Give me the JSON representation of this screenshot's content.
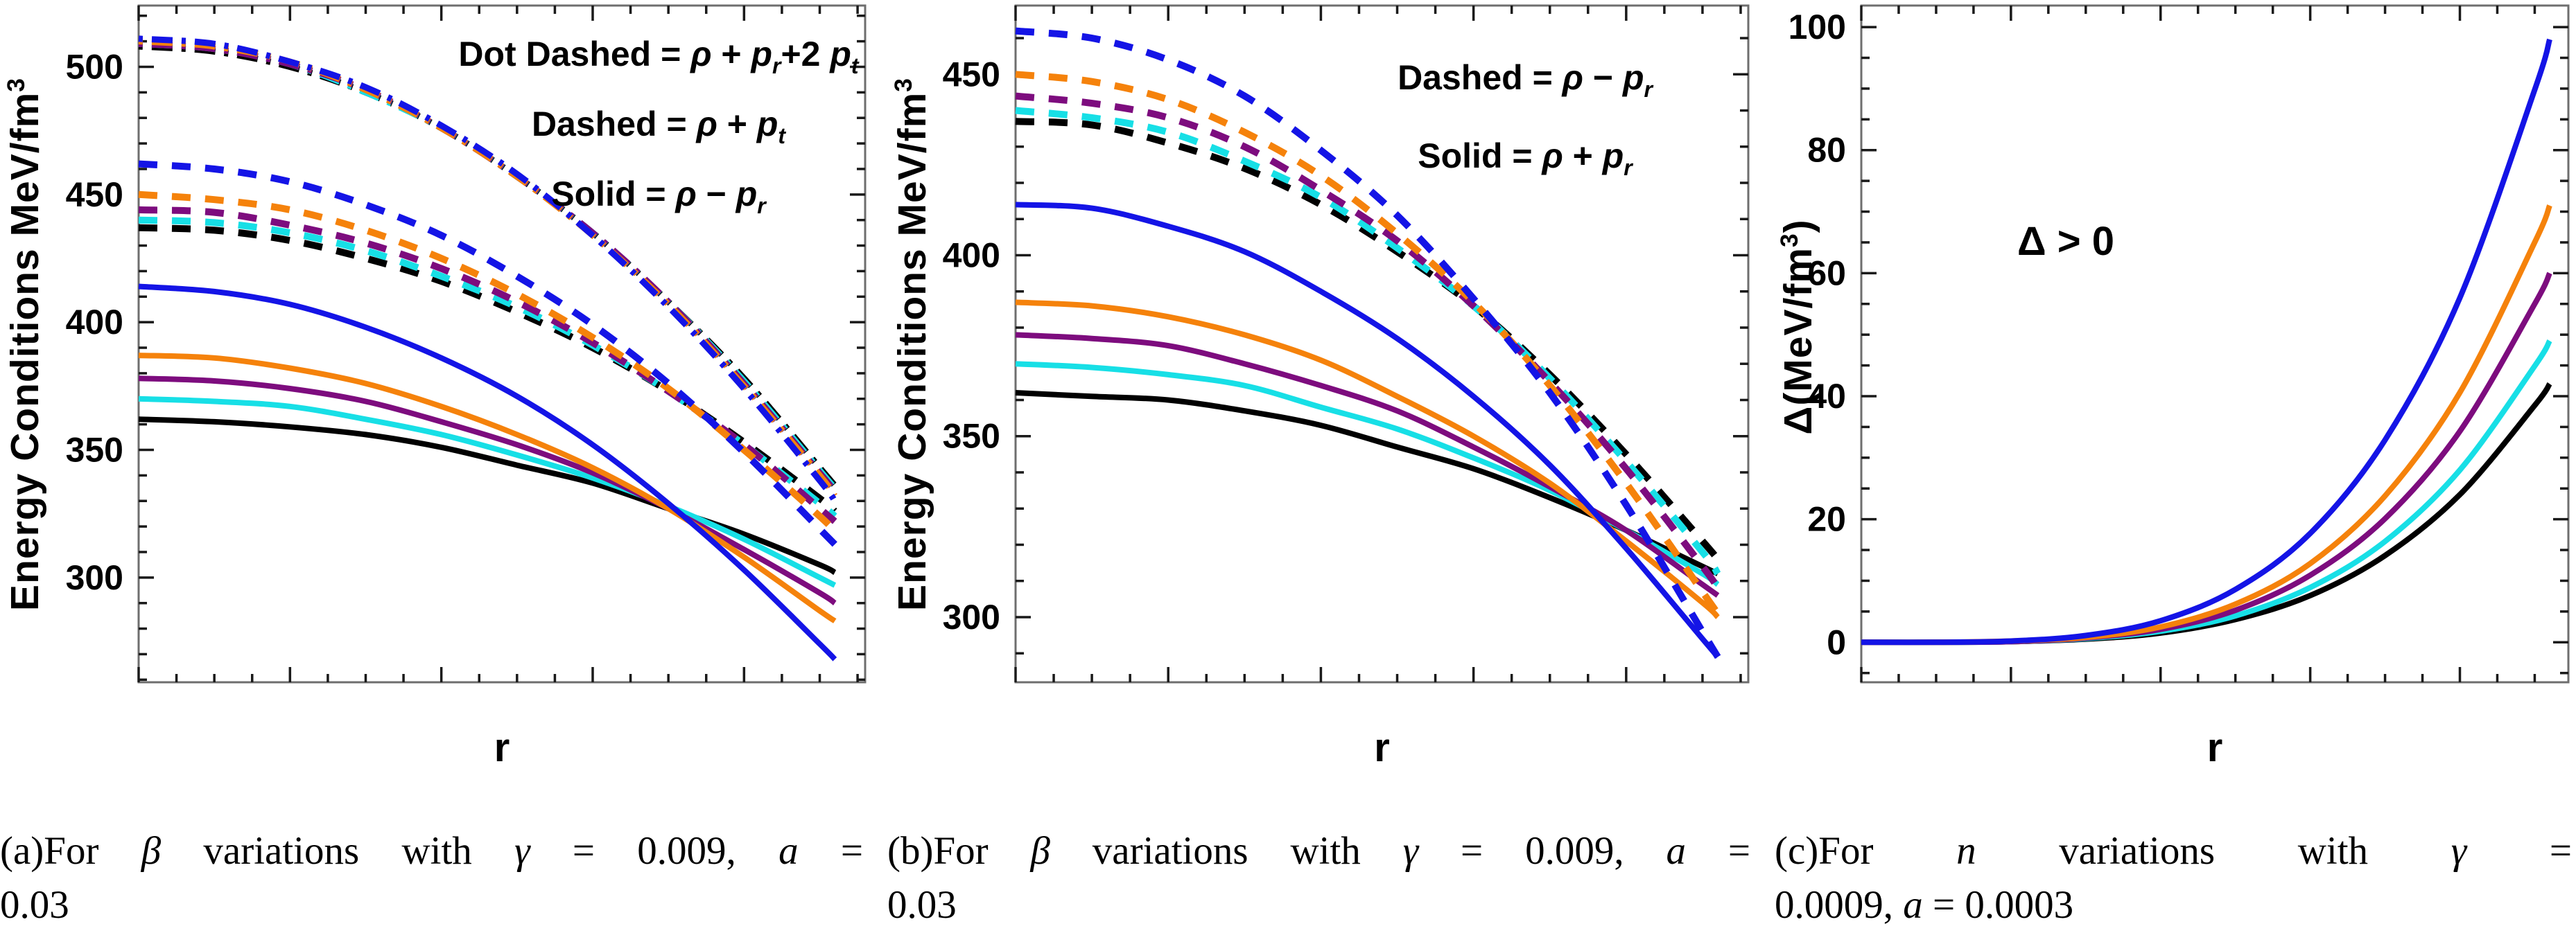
{
  "figure": {
    "panels": [
      {
        "id": "a",
        "ylabel_segments": [
          {
            "t": "Energy Conditions MeV/fm"
          },
          {
            "t": "3",
            "sup": true
          }
        ],
        "xlabel": "r",
        "legend": [
          {
            "label": "Dot Dashed",
            "formula": [
              {
                "t": " = "
              },
              {
                "t": "ρ",
                "i": true
              },
              {
                "t": " + "
              },
              {
                "t": "p",
                "i": true
              },
              {
                "t": "r",
                "i": true,
                "sub": true
              },
              {
                "t": "+2 "
              },
              {
                "t": "p",
                "i": true
              },
              {
                "t": "t",
                "i": true,
                "sub": true
              }
            ]
          },
          {
            "label": "Dashed",
            "formula": [
              {
                "t": " = "
              },
              {
                "t": "ρ",
                "i": true
              },
              {
                "t": " + "
              },
              {
                "t": "p",
                "i": true
              },
              {
                "t": "t",
                "i": true,
                "sub": true
              }
            ]
          },
          {
            "label": "Solid",
            "formula": [
              {
                "t": " = "
              },
              {
                "t": "ρ",
                "i": true
              },
              {
                "t": "  − "
              },
              {
                "t": "p",
                "i": true
              },
              {
                "t": "r",
                "i": true,
                "sub": true
              }
            ]
          }
        ],
        "caption": {
          "line1": [
            {
              "t": "(a)For "
            },
            {
              "t": "β",
              "i": true
            },
            {
              "t": " variations with "
            },
            {
              "t": "γ",
              "i": true
            },
            {
              "t": " = 0.009,  "
            },
            {
              "t": "a",
              "i": true
            },
            {
              "t": " ="
            }
          ],
          "line2": [
            {
              "t": "0.03"
            }
          ]
        }
      },
      {
        "id": "b",
        "ylabel_segments": [
          {
            "t": "Energy Conditions MeV/fm"
          },
          {
            "t": "3",
            "sup": true
          }
        ],
        "xlabel": "r",
        "legend": [
          {
            "label": "Dashed",
            "formula": [
              {
                "t": " = "
              },
              {
                "t": "ρ",
                "i": true
              },
              {
                "t": "  − "
              },
              {
                "t": "p",
                "i": true
              },
              {
                "t": "r",
                "i": true,
                "sub": true
              }
            ]
          },
          {
            "label": "Solid",
            "formula": [
              {
                "t": " = "
              },
              {
                "t": "ρ",
                "i": true
              },
              {
                "t": " + "
              },
              {
                "t": "p",
                "i": true
              },
              {
                "t": "r",
                "i": true,
                "sub": true
              }
            ]
          }
        ],
        "caption": {
          "line1": [
            {
              "t": "(b)For "
            },
            {
              "t": "β",
              "i": true
            },
            {
              "t": " variations with "
            },
            {
              "t": "γ",
              "i": true
            },
            {
              "t": " = 0.009,  "
            },
            {
              "t": "a",
              "i": true
            },
            {
              "t": " ="
            }
          ],
          "line2": [
            {
              "t": "0.03"
            }
          ]
        }
      },
      {
        "id": "c",
        "ylabel_segments": [
          {
            "t": "Δ(MeV/fm"
          },
          {
            "t": "3",
            "sup": true
          },
          {
            "t": ")"
          }
        ],
        "xlabel": "r",
        "annotation": "Δ > 0",
        "caption": {
          "line1": [
            {
              "t": "(c)For "
            },
            {
              "t": "n",
              "i": true
            },
            {
              "t": " variations with "
            },
            {
              "t": "γ",
              "i": true
            },
            {
              "t": " ="
            }
          ],
          "line2": [
            {
              "t": "0.0009,  "
            },
            {
              "t": "a",
              "i": true
            },
            {
              "t": " = 0.0003"
            }
          ]
        }
      }
    ]
  },
  "colors": {
    "black": "#000000",
    "cyan": "#17DFE6",
    "purple": "#7D0C7E",
    "orange": "#F5820B",
    "blue": "#1414E6",
    "frame": "#6e6e6e",
    "tick": "#1a1a1a"
  },
  "chart_data": [
    {
      "id": "a",
      "type": "line",
      "title": "",
      "xlabel": "r",
      "ylabel": "Energy Conditions MeV/fm^3",
      "legend_text": [
        "Dot Dashed = ρ + p_r+2 p_t",
        "Dashed = ρ + p_t",
        "Solid = ρ − p_r"
      ],
      "xlim": [
        0,
        9.6
      ],
      "ylim": [
        259,
        524
      ],
      "xticks": [
        0,
        2,
        4,
        6,
        8
      ],
      "xminor_step": 0.5,
      "yticks": [
        300,
        350,
        400,
        450,
        500
      ],
      "yminor_step": 10,
      "grid": false,
      "x": [
        0,
        1,
        2,
        3,
        4,
        5,
        6,
        7,
        8,
        9,
        9.2
      ],
      "series": [
        {
          "name": "rho - p_r (black)",
          "style": "solid",
          "color": "#000000",
          "values": [
            362,
            361,
            359,
            356,
            351,
            344,
            337,
            327,
            317,
            305,
            302
          ]
        },
        {
          "name": "rho - p_r (cyan)",
          "style": "solid",
          "color": "#17DFE6",
          "values": [
            370,
            369,
            367,
            362,
            356,
            348,
            339,
            328,
            315,
            300,
            297
          ]
        },
        {
          "name": "rho - p_r (purple)",
          "style": "solid",
          "color": "#7D0C7E",
          "values": [
            378,
            377,
            374,
            369,
            361,
            352,
            341,
            327,
            311,
            294,
            290
          ]
        },
        {
          "name": "rho - p_r (orange)",
          "style": "solid",
          "color": "#F5820B",
          "values": [
            387,
            386,
            382,
            376,
            367,
            356,
            343,
            327,
            308,
            287,
            283
          ]
        },
        {
          "name": "rho - p_r (blue)",
          "style": "solid",
          "color": "#1414E6",
          "values": [
            414,
            412,
            407,
            398,
            386,
            371,
            352,
            329,
            303,
            274,
            268
          ]
        },
        {
          "name": "rho + p_t (black)",
          "style": "dashed",
          "color": "#000000",
          "values": [
            437,
            436,
            432,
            425,
            416,
            404,
            390,
            373,
            353,
            331,
            326
          ]
        },
        {
          "name": "rho + p_t (cyan)",
          "style": "dashed",
          "color": "#17DFE6",
          "values": [
            440,
            439,
            435,
            428,
            418,
            406,
            391,
            373,
            352,
            329,
            324
          ]
        },
        {
          "name": "rho + p_t (purple)",
          "style": "dashed",
          "color": "#7D0C7E",
          "values": [
            444,
            443,
            438,
            431,
            421,
            408,
            392,
            373,
            352,
            327,
            322
          ]
        },
        {
          "name": "rho + p_t (orange)",
          "style": "dashed",
          "color": "#F5820B",
          "values": [
            450,
            448,
            444,
            436,
            425,
            411,
            394,
            374,
            350,
            324,
            318
          ]
        },
        {
          "name": "rho + p_t (blue)",
          "style": "dashed",
          "color": "#1414E6",
          "values": [
            462,
            460,
            455,
            446,
            434,
            418,
            399,
            376,
            349,
            319,
            313
          ]
        },
        {
          "name": "rho + p_r + 2p_t (black)",
          "style": "dotdashed",
          "color": "#000000",
          "values": [
            508,
            506,
            500,
            490,
            476,
            457,
            435,
            408,
            378,
            343,
            336
          ]
        },
        {
          "name": "rho + p_r + 2p_t (cyan)",
          "style": "dotdashed",
          "color": "#17DFE6",
          "values": [
            509,
            507,
            501,
            490,
            476,
            457,
            435,
            408,
            377,
            342,
            335
          ]
        },
        {
          "name": "rho + p_r + 2p_t (purple)",
          "style": "dotdashed",
          "color": "#7D0C7E",
          "values": [
            509,
            507,
            501,
            491,
            476,
            457,
            435,
            408,
            376,
            341,
            334
          ]
        },
        {
          "name": "rho + p_r + 2p_t (orange)",
          "style": "dotdashed",
          "color": "#F5820B",
          "values": [
            510,
            508,
            502,
            491,
            476,
            457,
            434,
            407,
            375,
            340,
            332
          ]
        },
        {
          "name": "rho + p_r + 2p_t (blue)",
          "style": "dotdashed",
          "color": "#1414E6",
          "values": [
            511,
            509,
            502,
            492,
            477,
            458,
            434,
            406,
            374,
            338,
            330
          ]
        }
      ]
    },
    {
      "id": "b",
      "type": "line",
      "title": "",
      "xlabel": "r",
      "ylabel": "Energy Conditions MeV/fm^3",
      "legend_text": [
        "Dashed = ρ − p_r",
        "Solid = ρ + p_r"
      ],
      "xlim": [
        0,
        9.6
      ],
      "ylim": [
        282,
        469
      ],
      "xticks": [
        0,
        2,
        4,
        6,
        8
      ],
      "xminor_step": 0.5,
      "yticks": [
        300,
        350,
        400,
        450
      ],
      "yminor_step": 10,
      "grid": false,
      "x": [
        0,
        1,
        2,
        3,
        4,
        5,
        6,
        7,
        8,
        9,
        9.2
      ],
      "series": [
        {
          "name": "rho + p_r (black)",
          "style": "solid",
          "color": "#000000",
          "values": [
            362,
            361,
            360,
            357,
            353,
            347,
            341,
            333,
            324,
            314,
            312
          ]
        },
        {
          "name": "rho + p_r (cyan)",
          "style": "solid",
          "color": "#17DFE6",
          "values": [
            370,
            369,
            367,
            364,
            358,
            352,
            344,
            335,
            324,
            312,
            309
          ]
        },
        {
          "name": "rho + p_r (purple)",
          "style": "solid",
          "color": "#7D0C7E",
          "values": [
            378,
            377,
            375,
            370,
            364,
            357,
            347,
            336,
            324,
            309,
            306
          ]
        },
        {
          "name": "rho + p_r (orange)",
          "style": "solid",
          "color": "#F5820B",
          "values": [
            387,
            386,
            383,
            378,
            371,
            361,
            350,
            337,
            321,
            304,
            300
          ]
        },
        {
          "name": "rho + p_r (blue)",
          "style": "solid",
          "color": "#1414E6",
          "values": [
            414,
            413,
            408,
            401,
            390,
            377,
            361,
            342,
            319,
            294,
            289
          ]
        },
        {
          "name": "rho - p_r (black)",
          "style": "dashed",
          "color": "#000000",
          "values": [
            437,
            436,
            431,
            424,
            414,
            401,
            386,
            367,
            345,
            321,
            316
          ]
        },
        {
          "name": "rho - p_r (cyan)",
          "style": "dashed",
          "color": "#17DFE6",
          "values": [
            440,
            438,
            434,
            426,
            416,
            402,
            386,
            366,
            343,
            318,
            312
          ]
        },
        {
          "name": "rho - p_r (purple)",
          "style": "dashed",
          "color": "#7D0C7E",
          "values": [
            444,
            442,
            438,
            430,
            418,
            404,
            386,
            365,
            341,
            314,
            308
          ]
        },
        {
          "name": "rho - p_r (orange)",
          "style": "dashed",
          "color": "#F5820B",
          "values": [
            450,
            448,
            443,
            434,
            422,
            406,
            387,
            364,
            337,
            307,
            301
          ]
        },
        {
          "name": "rho - p_r (blue)",
          "style": "dashed",
          "color": "#1414E6",
          "values": [
            462,
            460,
            454,
            444,
            429,
            411,
            388,
            362,
            331,
            296,
            289
          ]
        }
      ]
    },
    {
      "id": "c",
      "type": "line",
      "title": "",
      "xlabel": "r",
      "ylabel": "Δ(MeV/fm^3)",
      "annotation": "Δ > 0",
      "xlim": [
        0,
        9.45
      ],
      "ylim": [
        -6.5,
        103.5
      ],
      "xticks": [
        0,
        2,
        4,
        6,
        8
      ],
      "xminor_step": 0.5,
      "yticks": [
        0,
        20,
        40,
        60,
        80,
        100
      ],
      "yminor_step": 5,
      "grid": false,
      "x": [
        0,
        1,
        2,
        3,
        4,
        5,
        6,
        7,
        8,
        9,
        9.2
      ],
      "series": [
        {
          "name": "Delta (black)",
          "style": "solid",
          "color": "#000000",
          "values": [
            0,
            0,
            0.1,
            0.5,
            1.5,
            3.7,
            7.6,
            14.1,
            24,
            38.5,
            42
          ]
        },
        {
          "name": "Delta (cyan)",
          "style": "solid",
          "color": "#17DFE6",
          "values": [
            0,
            0,
            0.1,
            0.6,
            1.8,
            4.3,
            8.9,
            16.4,
            28,
            44.9,
            49
          ]
        },
        {
          "name": "Delta (purple)",
          "style": "solid",
          "color": "#7D0C7E",
          "values": [
            0,
            0,
            0.1,
            0.7,
            2.1,
            5.2,
            10.9,
            20.1,
            34.3,
            55,
            60
          ]
        },
        {
          "name": "Delta (orange)",
          "style": "solid",
          "color": "#F5820B",
          "values": [
            0,
            0,
            0.2,
            0.8,
            2.5,
            6.2,
            12.8,
            23.8,
            40.6,
            65,
            71
          ]
        },
        {
          "name": "Delta (blue)",
          "style": "solid",
          "color": "#1414E6",
          "values": [
            0,
            0,
            0.2,
            1.1,
            3.5,
            8.6,
            17.7,
            32.9,
            56,
            89.8,
            98
          ]
        }
      ]
    }
  ]
}
